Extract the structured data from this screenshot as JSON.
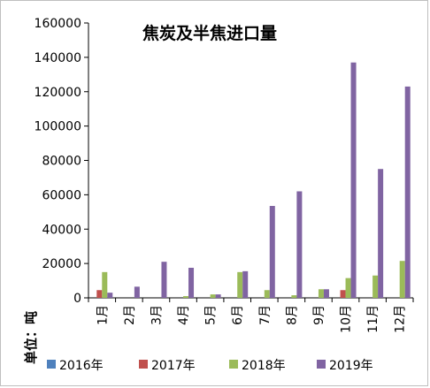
{
  "chart_data": {
    "type": "bar",
    "title": "焦炭及半焦进口量",
    "ylabel": "单位：吨",
    "xlabel": "",
    "ylim": [
      0,
      160000
    ],
    "yticks": [
      0,
      20000,
      40000,
      60000,
      80000,
      100000,
      120000,
      140000,
      160000
    ],
    "grid": false,
    "legend_position": "bottom",
    "categories": [
      "1月",
      "2月",
      "3月",
      "4月",
      "5月",
      "6月",
      "7月",
      "8月",
      "9月",
      "10月",
      "11月",
      "12月"
    ],
    "series": [
      {
        "name": "2016年",
        "color": "#4f81bd",
        "values": [
          0,
          0,
          0,
          0,
          0,
          0,
          0,
          0,
          0,
          0,
          0,
          0
        ]
      },
      {
        "name": "2017年",
        "color": "#c0504d",
        "values": [
          4500,
          0,
          0,
          0,
          0,
          0,
          0,
          0,
          0,
          4500,
          0,
          0
        ]
      },
      {
        "name": "2018年",
        "color": "#9bbb59",
        "values": [
          15000,
          0,
          0,
          1000,
          2000,
          15000,
          4500,
          1500,
          5000,
          11500,
          13000,
          21500
        ]
      },
      {
        "name": "2019年",
        "color": "#8064a2",
        "values": [
          3000,
          6500,
          21000,
          17500,
          2000,
          15500,
          53500,
          62000,
          5000,
          137000,
          75000,
          123000
        ]
      }
    ]
  }
}
